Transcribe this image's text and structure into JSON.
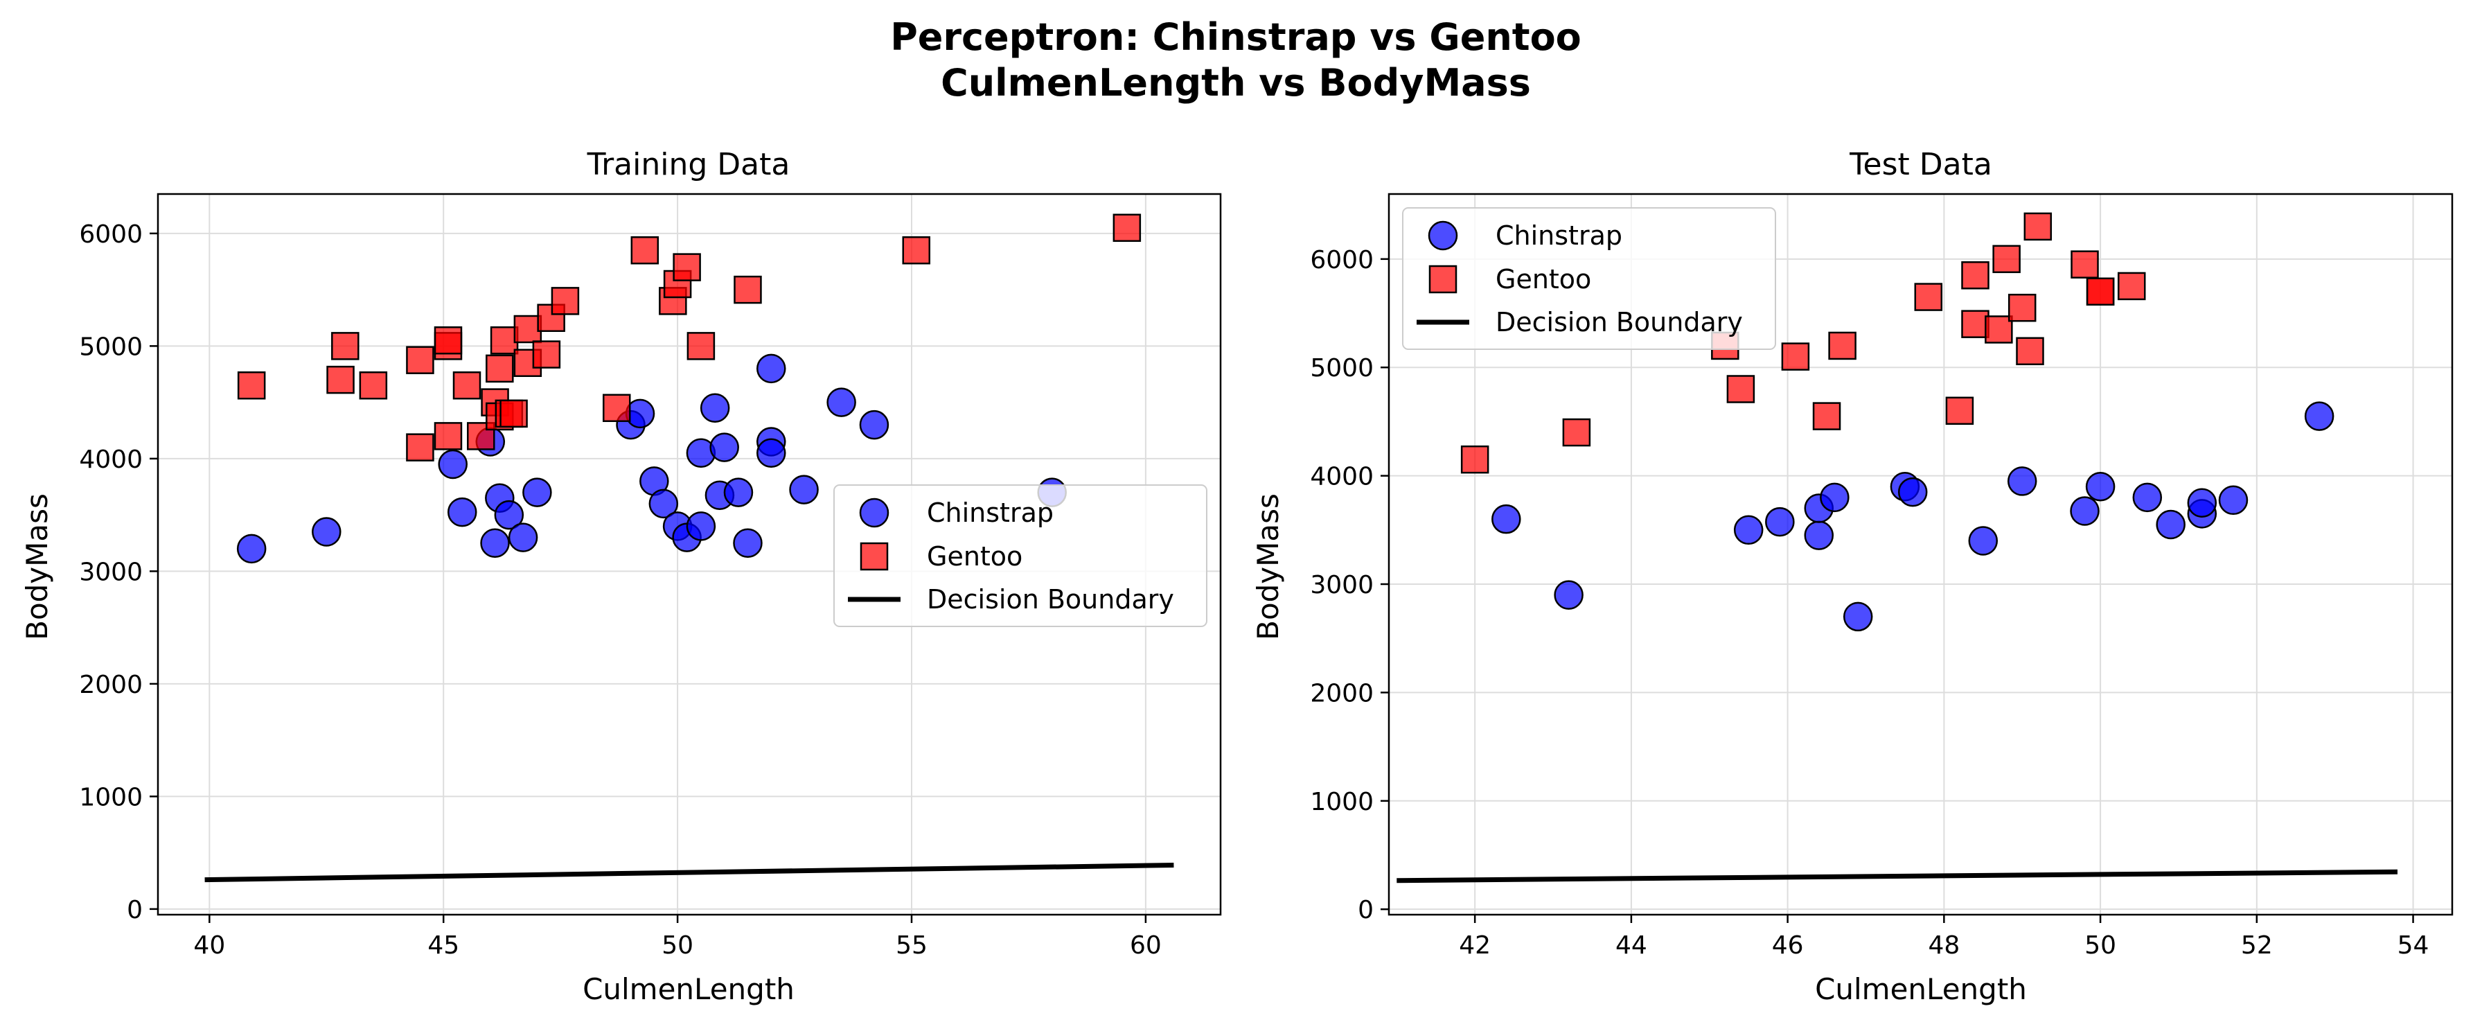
{
  "figure": {
    "title_line1": "Perceptron: Chinstrap vs Gentoo",
    "title_line2": "CulmenLength vs BodyMass"
  },
  "colors": {
    "chinstrap": "#0000ff",
    "gentoo": "#ff0000",
    "boundary": "#000000",
    "grid": "#dddddd"
  },
  "chart_data": [
    {
      "type": "scatter",
      "title": "Training Data",
      "xlabel": "CulmenLength",
      "ylabel": "BodyMass",
      "xlim": [
        38.9,
        61.6
      ],
      "ylim": [
        -50,
        6350
      ],
      "xticks": [
        40,
        45,
        50,
        55,
        60
      ],
      "yticks": [
        0,
        1000,
        2000,
        3000,
        4000,
        5000,
        6000
      ],
      "grid": true,
      "legend_position": "center-right",
      "series": [
        {
          "name": "Chinstrap",
          "marker": "circle",
          "points": [
            [
              40.9,
              3200
            ],
            [
              42.5,
              3350
            ],
            [
              45.2,
              3950
            ],
            [
              45.4,
              3525
            ],
            [
              46.0,
              4150
            ],
            [
              46.1,
              3250
            ],
            [
              46.2,
              3650
            ],
            [
              46.4,
              3500
            ],
            [
              46.7,
              3300
            ],
            [
              47.0,
              3700
            ],
            [
              49.0,
              4300
            ],
            [
              49.2,
              4400
            ],
            [
              49.5,
              3800
            ],
            [
              49.7,
              3600
            ],
            [
              50.0,
              3400
            ],
            [
              50.2,
              3300
            ],
            [
              50.5,
              3400
            ],
            [
              50.5,
              4050
            ],
            [
              50.8,
              4450
            ],
            [
              50.9,
              3675
            ],
            [
              51.0,
              4100
            ],
            [
              51.3,
              3700
            ],
            [
              51.5,
              3250
            ],
            [
              52.0,
              4800
            ],
            [
              52.0,
              4150
            ],
            [
              52.0,
              4050
            ],
            [
              52.7,
              3725
            ],
            [
              53.5,
              4500
            ],
            [
              54.2,
              4300
            ],
            [
              58.0,
              3700
            ]
          ]
        },
        {
          "name": "Gentoo",
          "marker": "square",
          "points": [
            [
              40.9,
              4650
            ],
            [
              42.8,
              4700
            ],
            [
              42.9,
              5000
            ],
            [
              43.5,
              4650
            ],
            [
              44.5,
              4875
            ],
            [
              44.5,
              4100
            ],
            [
              45.1,
              5000
            ],
            [
              45.1,
              5050
            ],
            [
              45.1,
              4200
            ],
            [
              45.5,
              4650
            ],
            [
              45.8,
              4200
            ],
            [
              46.1,
              4500
            ],
            [
              46.2,
              4375
            ],
            [
              46.2,
              4800
            ],
            [
              46.3,
              5050
            ],
            [
              46.4,
              4400
            ],
            [
              46.5,
              4400
            ],
            [
              46.8,
              5150
            ],
            [
              46.8,
              4850
            ],
            [
              47.2,
              4925
            ],
            [
              47.3,
              5250
            ],
            [
              47.6,
              5400
            ],
            [
              48.7,
              4450
            ],
            [
              49.3,
              5850
            ],
            [
              49.9,
              5400
            ],
            [
              50.0,
              5550
            ],
            [
              50.2,
              5700
            ],
            [
              50.5,
              5000
            ],
            [
              51.5,
              5500
            ],
            [
              55.1,
              5850
            ],
            [
              59.6,
              6050
            ]
          ]
        },
        {
          "name": "Decision Boundary",
          "marker": "line",
          "points": [
            [
              39.9,
              260
            ],
            [
              60.6,
              390
            ]
          ]
        }
      ]
    },
    {
      "type": "scatter",
      "title": "Test Data",
      "xlabel": "CulmenLength",
      "ylabel": "BodyMass",
      "xlim": [
        40.9,
        54.5
      ],
      "ylim": [
        -50,
        6600
      ],
      "xticks": [
        42,
        44,
        46,
        48,
        50,
        52,
        54
      ],
      "yticks": [
        0,
        1000,
        2000,
        3000,
        4000,
        5000,
        6000
      ],
      "grid": true,
      "legend_position": "upper-left",
      "series": [
        {
          "name": "Chinstrap",
          "marker": "circle",
          "points": [
            [
              42.4,
              3600
            ],
            [
              43.2,
              2900
            ],
            [
              45.5,
              3500
            ],
            [
              45.9,
              3575
            ],
            [
              46.4,
              3450
            ],
            [
              46.4,
              3700
            ],
            [
              46.6,
              3800
            ],
            [
              46.9,
              2700
            ],
            [
              47.5,
              3900
            ],
            [
              47.6,
              3850
            ],
            [
              48.5,
              3400
            ],
            [
              49.0,
              3950
            ],
            [
              49.8,
              3675
            ],
            [
              50.0,
              3900
            ],
            [
              50.6,
              3800
            ],
            [
              50.9,
              3550
            ],
            [
              51.3,
              3650
            ],
            [
              51.3,
              3750
            ],
            [
              51.7,
              3775
            ],
            [
              52.8,
              4550
            ]
          ]
        },
        {
          "name": "Gentoo",
          "marker": "square",
          "points": [
            [
              42.0,
              4150
            ],
            [
              43.3,
              4400
            ],
            [
              45.2,
              5200
            ],
            [
              45.4,
              4800
            ],
            [
              46.1,
              5100
            ],
            [
              46.5,
              4550
            ],
            [
              46.7,
              5200
            ],
            [
              47.8,
              5650
            ],
            [
              48.2,
              4600
            ],
            [
              48.4,
              5850
            ],
            [
              48.4,
              5400
            ],
            [
              48.7,
              5350
            ],
            [
              48.8,
              6000
            ],
            [
              49.0,
              5550
            ],
            [
              49.1,
              5150
            ],
            [
              49.2,
              6300
            ],
            [
              49.8,
              5950
            ],
            [
              50.0,
              5700
            ],
            [
              50.0,
              5700
            ],
            [
              50.4,
              5750
            ]
          ]
        },
        {
          "name": "Decision Boundary",
          "marker": "line",
          "points": [
            [
              41.0,
              265
            ],
            [
              53.8,
              345
            ]
          ]
        }
      ]
    }
  ]
}
